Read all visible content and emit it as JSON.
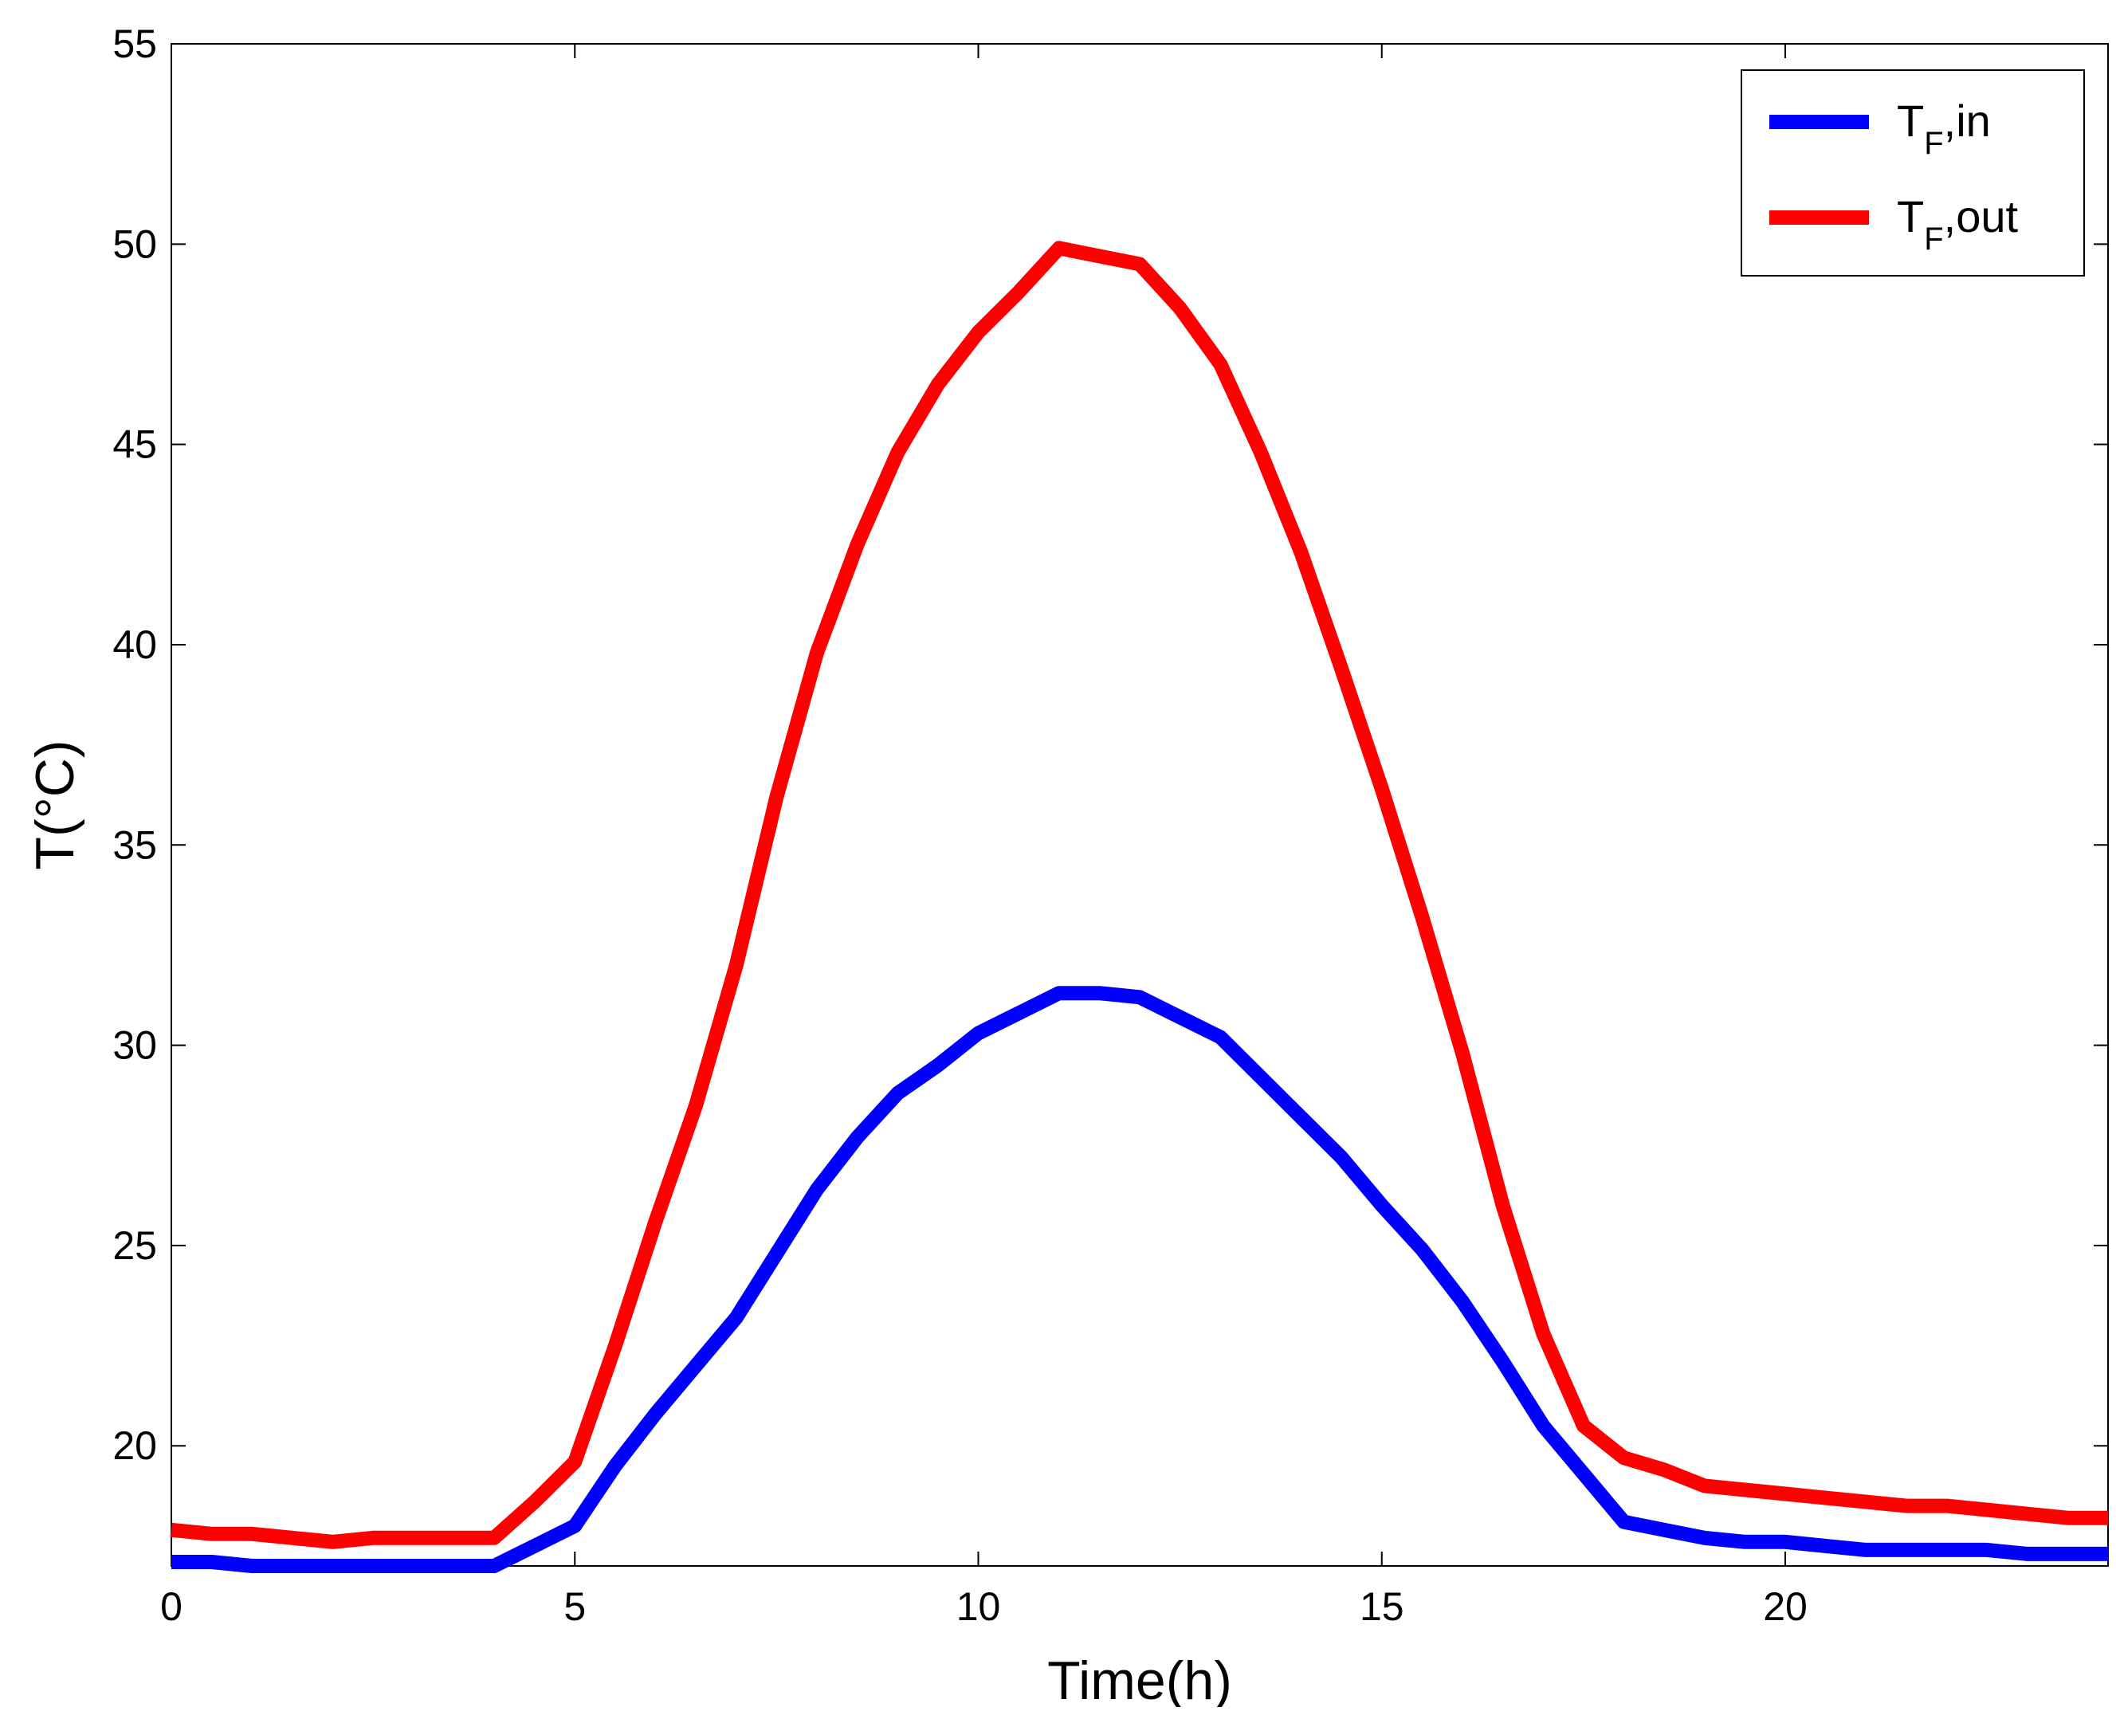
{
  "chart_data": {
    "type": "line",
    "title": "",
    "xlabel": "Time(h)",
    "ylabel": "T(°C)",
    "xlim": [
      0,
      24
    ],
    "ylim": [
      17,
      55
    ],
    "xticks": [
      0,
      5,
      10,
      15,
      20
    ],
    "yticks": [
      20,
      25,
      30,
      35,
      40,
      45,
      50,
      55
    ],
    "grid": false,
    "legend_position": "top-right",
    "series": [
      {
        "name": "T_F,in",
        "legend_main": "T",
        "legend_sub": "F",
        "legend_suffix": ",in",
        "color": "#0000ff",
        "x": [
          0,
          0.5,
          1,
          1.5,
          2,
          2.5,
          3,
          3.5,
          4,
          4.5,
          5,
          5.5,
          6,
          6.5,
          7,
          7.5,
          8,
          8.5,
          9,
          9.5,
          10,
          10.5,
          11,
          11.5,
          12,
          12.5,
          13,
          13.5,
          14,
          14.5,
          15,
          15.5,
          16,
          16.5,
          17,
          17.5,
          18,
          18.5,
          19,
          19.5,
          20,
          20.5,
          21,
          21.5,
          22,
          22.5,
          23,
          23.5,
          24
        ],
        "y": [
          17.1,
          17.1,
          17.0,
          17.0,
          17.0,
          17.0,
          17.0,
          17.0,
          17.0,
          17.5,
          18.0,
          19.5,
          20.8,
          22.0,
          23.2,
          24.8,
          26.4,
          27.7,
          28.8,
          29.5,
          30.3,
          30.8,
          31.3,
          31.3,
          31.2,
          30.7,
          30.2,
          29.2,
          28.2,
          27.2,
          26.0,
          24.9,
          23.6,
          22.1,
          20.5,
          19.3,
          18.1,
          17.9,
          17.7,
          17.6,
          17.6,
          17.5,
          17.4,
          17.4,
          17.4,
          17.4,
          17.3,
          17.3,
          17.3
        ]
      },
      {
        "name": "T_F,out",
        "legend_main": "T",
        "legend_sub": "F",
        "legend_suffix": ",out",
        "color": "#ff0000",
        "x": [
          0,
          0.5,
          1,
          1.5,
          2,
          2.5,
          3,
          3.5,
          4,
          4.5,
          5,
          5.5,
          6,
          6.5,
          7,
          7.5,
          8,
          8.5,
          9,
          9.5,
          10,
          10.5,
          11,
          11.5,
          12,
          12.5,
          13,
          13.5,
          14,
          14.5,
          15,
          15.5,
          16,
          16.5,
          17,
          17.5,
          18,
          18.5,
          19,
          19.5,
          20,
          20.5,
          21,
          21.5,
          22,
          22.5,
          23,
          23.5,
          24
        ],
        "y": [
          17.9,
          17.8,
          17.8,
          17.7,
          17.6,
          17.7,
          17.7,
          17.7,
          17.7,
          18.6,
          19.6,
          22.5,
          25.6,
          28.5,
          32.0,
          36.2,
          39.8,
          42.5,
          44.8,
          46.5,
          47.8,
          48.8,
          49.9,
          49.7,
          49.5,
          48.4,
          47.0,
          44.8,
          42.3,
          39.4,
          36.4,
          33.2,
          29.8,
          26.0,
          22.8,
          20.5,
          19.7,
          19.4,
          19.0,
          18.9,
          18.8,
          18.7,
          18.6,
          18.5,
          18.5,
          18.4,
          18.3,
          18.2,
          18.2
        ]
      }
    ]
  }
}
